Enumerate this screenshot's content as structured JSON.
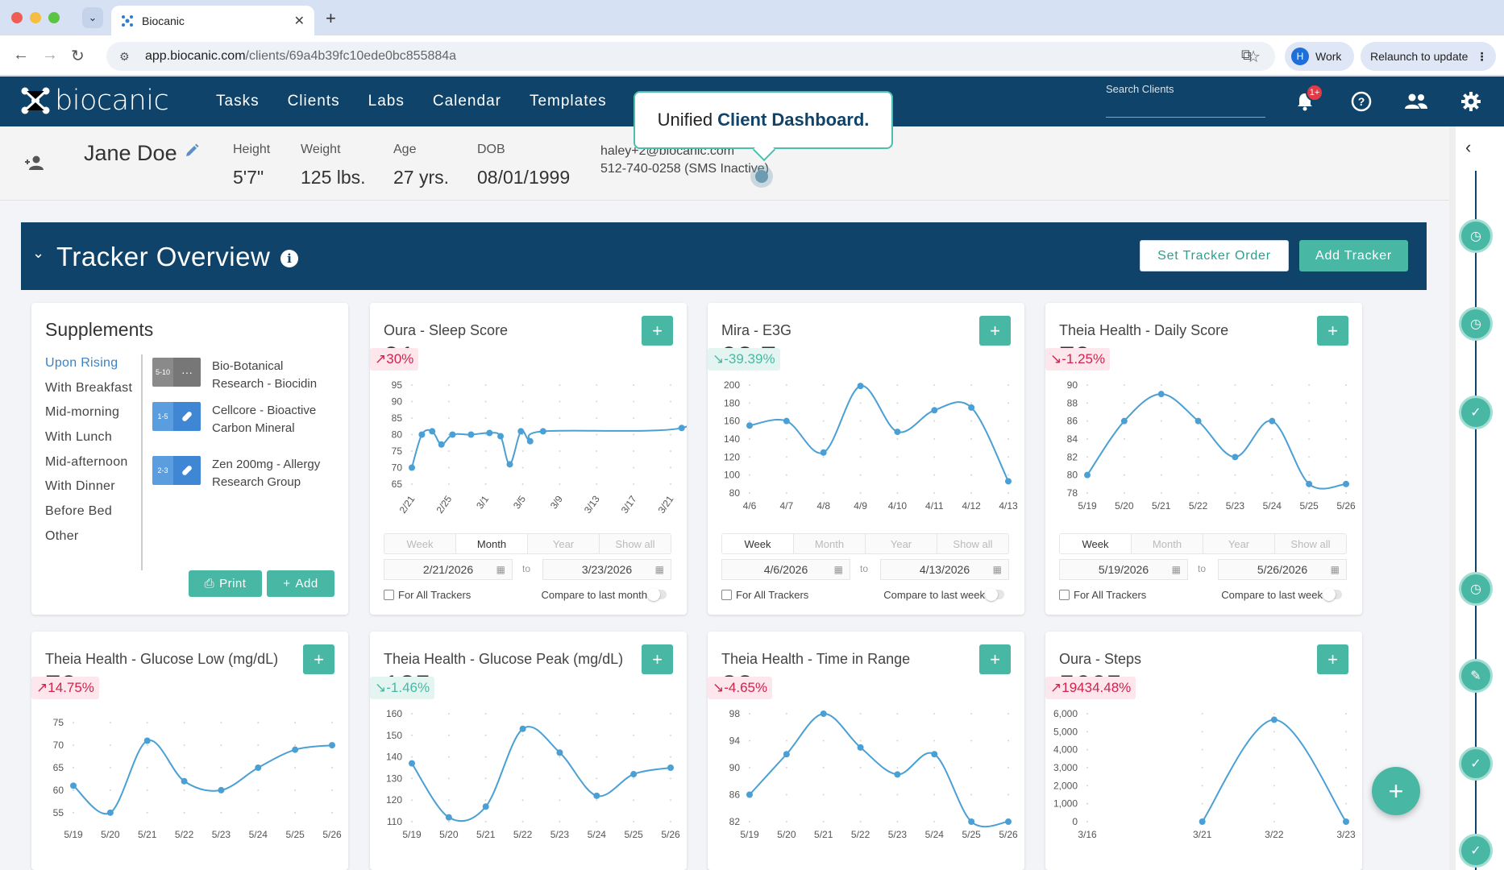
{
  "browser": {
    "tab_title": "Biocanic",
    "url_host": "app.biocanic.com",
    "url_path": "/clients/69a4b39fc10ede0bc855884a",
    "profile_initial": "H",
    "profile_label": "Work",
    "relaunch_label": "Relaunch to update"
  },
  "nav": {
    "brand": "biocanic",
    "items": [
      "Tasks",
      "Clients",
      "Labs",
      "Calendar",
      "Templates"
    ],
    "search_label": "Search Clients",
    "notification_badge": "1+"
  },
  "tooltip": {
    "prefix": "Unified ",
    "bold": "Client Dashboard."
  },
  "patient": {
    "name": "Jane Doe",
    "stats": [
      {
        "label": "Height",
        "value": "5'7\""
      },
      {
        "label": "Weight",
        "value": "125 lbs."
      },
      {
        "label": "Age",
        "value": "27 yrs."
      },
      {
        "label": "DOB",
        "value": "08/01/1999"
      }
    ],
    "email": "haley+2@biocanic.com",
    "phone": "512-740-0258 (SMS Inactive)"
  },
  "tracker_overview": {
    "title": "Tracker Overview",
    "set_order_label": "Set Tracker Order",
    "add_tracker_label": "Add Tracker"
  },
  "supplements": {
    "title": "Supplements",
    "categories": [
      "Upon Rising",
      "With Breakfast",
      "Mid-morning",
      "With Lunch",
      "Mid-afternoon",
      "With Dinner",
      "Before Bed",
      "Other"
    ],
    "items": [
      {
        "qty": "5-10",
        "icon": "more-icon",
        "name": "Bio-Botanical Research - Biocidin"
      },
      {
        "qty": "1-5",
        "icon": "pill-icon",
        "name": "Cellcore - Bioactive Carbon Mineral"
      },
      {
        "qty": "2-3",
        "icon": "pill-icon",
        "name": "Zen 200mg - Allergy Research Group"
      }
    ],
    "print_label": "Print",
    "add_label": "Add"
  },
  "common": {
    "ranges": [
      "Week",
      "Month",
      "Year",
      "Show all"
    ],
    "to": "to",
    "for_all": "For All Trackers"
  },
  "trackers": [
    {
      "title": "Oura - Sleep Score",
      "value": "91",
      "change": "30%",
      "trend": "up",
      "tone": "bad",
      "active_range": "Month",
      "date_from": "2/21/2026",
      "date_to": "3/23/2026",
      "compare": "Compare to last month",
      "chart_data": {
        "type": "line",
        "x_labels": [
          "2/21",
          "2/25",
          "3/1",
          "3/5",
          "3/9",
          "3/13",
          "3/17",
          "3/21"
        ],
        "rotate": true,
        "yticks": [
          65,
          70,
          75,
          80,
          85,
          90,
          95
        ],
        "ylim": [
          65,
          95
        ],
        "points": [
          [
            0,
            70
          ],
          [
            0.27,
            80
          ],
          [
            0.55,
            81
          ],
          [
            0.8,
            77
          ],
          [
            1.1,
            80
          ],
          [
            1.6,
            80
          ],
          [
            2.1,
            80.5
          ],
          [
            2.4,
            79.5
          ],
          [
            2.65,
            71
          ],
          [
            2.95,
            81
          ],
          [
            3.2,
            78
          ],
          [
            3.55,
            81
          ],
          [
            7.3,
            82
          ],
          [
            7.6,
            91
          ]
        ]
      }
    },
    {
      "title": "Mira - E3G",
      "value": "93.7",
      "change": "-39.39%",
      "trend": "down",
      "tone": "good",
      "active_range": "Week",
      "date_from": "4/6/2026",
      "date_to": "4/13/2026",
      "compare": "Compare to last week",
      "chart_data": {
        "type": "line",
        "x_labels": [
          "4/6",
          "4/7",
          "4/8",
          "4/9",
          "4/10",
          "4/11",
          "4/12",
          "4/13"
        ],
        "rotate": false,
        "yticks": [
          80,
          100,
          120,
          140,
          160,
          180,
          200
        ],
        "ylim": [
          80,
          200
        ],
        "points": [
          [
            0,
            155
          ],
          [
            1,
            160
          ],
          [
            2,
            125
          ],
          [
            3,
            199
          ],
          [
            4,
            148
          ],
          [
            5,
            172
          ],
          [
            6,
            175
          ],
          [
            7,
            93
          ]
        ]
      }
    },
    {
      "title": "Theia Health - Daily Score",
      "value": "79",
      "change": "-1.25%",
      "trend": "down",
      "tone": "bad",
      "active_range": "Week",
      "date_from": "5/19/2026",
      "date_to": "5/26/2026",
      "compare": "Compare to last week",
      "chart_data": {
        "type": "line",
        "x_labels": [
          "5/19",
          "5/20",
          "5/21",
          "5/22",
          "5/23",
          "5/24",
          "5/25",
          "5/26"
        ],
        "rotate": false,
        "yticks": [
          78,
          80,
          82,
          84,
          86,
          88,
          90
        ],
        "ylim": [
          78,
          90
        ],
        "points": [
          [
            0,
            80
          ],
          [
            1,
            86
          ],
          [
            2,
            89
          ],
          [
            3,
            86
          ],
          [
            4,
            82
          ],
          [
            5,
            86
          ],
          [
            6,
            79
          ],
          [
            7,
            79
          ]
        ]
      }
    },
    {
      "title": "Theia Health - Glucose Low (mg/dL)",
      "value": "70",
      "change": "14.75%",
      "trend": "up",
      "tone": "bad",
      "chart_data": {
        "type": "line",
        "x_labels": [
          "5/19",
          "5/20",
          "5/21",
          "5/22",
          "5/23",
          "5/24",
          "5/25",
          "5/26"
        ],
        "rotate": false,
        "yticks": [
          55,
          60,
          65,
          70,
          75
        ],
        "ylim": [
          53,
          77
        ],
        "points": [
          [
            0,
            61
          ],
          [
            1,
            55
          ],
          [
            2,
            71
          ],
          [
            3,
            62
          ],
          [
            4,
            60
          ],
          [
            5,
            65
          ],
          [
            6,
            69
          ],
          [
            7,
            70
          ]
        ]
      }
    },
    {
      "title": "Theia Health - Glucose Peak (mg/dL)",
      "value": "135",
      "change": "-1.46%",
      "trend": "down",
      "tone": "good",
      "chart_data": {
        "type": "line",
        "x_labels": [
          "5/19",
          "5/20",
          "5/21",
          "5/22",
          "5/23",
          "5/24",
          "5/25",
          "5/26"
        ],
        "rotate": false,
        "yticks": [
          110,
          120,
          130,
          140,
          150,
          160
        ],
        "ylim": [
          110,
          160
        ],
        "points": [
          [
            0,
            137
          ],
          [
            1,
            112
          ],
          [
            2,
            117
          ],
          [
            3,
            153
          ],
          [
            4,
            142
          ],
          [
            5,
            122
          ],
          [
            6,
            132
          ],
          [
            7,
            135
          ]
        ]
      }
    },
    {
      "title": "Theia Health - Time in Range",
      "value": "82",
      "change": "-4.65%",
      "trend": "down",
      "tone": "bad",
      "chart_data": {
        "type": "line",
        "x_labels": [
          "5/19",
          "5/20",
          "5/21",
          "5/22",
          "5/23",
          "5/24",
          "5/25",
          "5/26"
        ],
        "rotate": false,
        "yticks": [
          82,
          86,
          90,
          94,
          98
        ],
        "ylim": [
          82,
          98
        ],
        "points": [
          [
            0,
            86
          ],
          [
            1,
            92
          ],
          [
            2,
            98
          ],
          [
            3,
            93
          ],
          [
            4,
            89
          ],
          [
            5,
            92
          ],
          [
            6,
            82
          ],
          [
            7,
            82
          ]
        ]
      }
    },
    {
      "title": "Oura - Steps",
      "value": "5665",
      "change": "19434.48%",
      "trend": "up",
      "tone": "bad",
      "chart_data": {
        "type": "line",
        "x_labels": [
          "3/16",
          "3/21",
          "3/22",
          "3/23"
        ],
        "x_positions": [
          0,
          1.6,
          2.6,
          3.6
        ],
        "x_max": 3.6,
        "rotate": false,
        "yticks": [
          0,
          1000,
          2000,
          3000,
          4000,
          5000,
          6000
        ],
        "ytick_labels": [
          "0",
          "1,000",
          "2,000",
          "3,000",
          "4,000",
          "5,000",
          "6,000"
        ],
        "ylim": [
          0,
          6000
        ],
        "points": [
          [
            1.6,
            0
          ],
          [
            2.6,
            5665
          ],
          [
            3.6,
            0
          ]
        ]
      }
    }
  ],
  "colors": {
    "nav": "#0f4369",
    "accent": "#48b8a5",
    "line": "#4a9fd4",
    "up_bad": "#d0234d"
  }
}
